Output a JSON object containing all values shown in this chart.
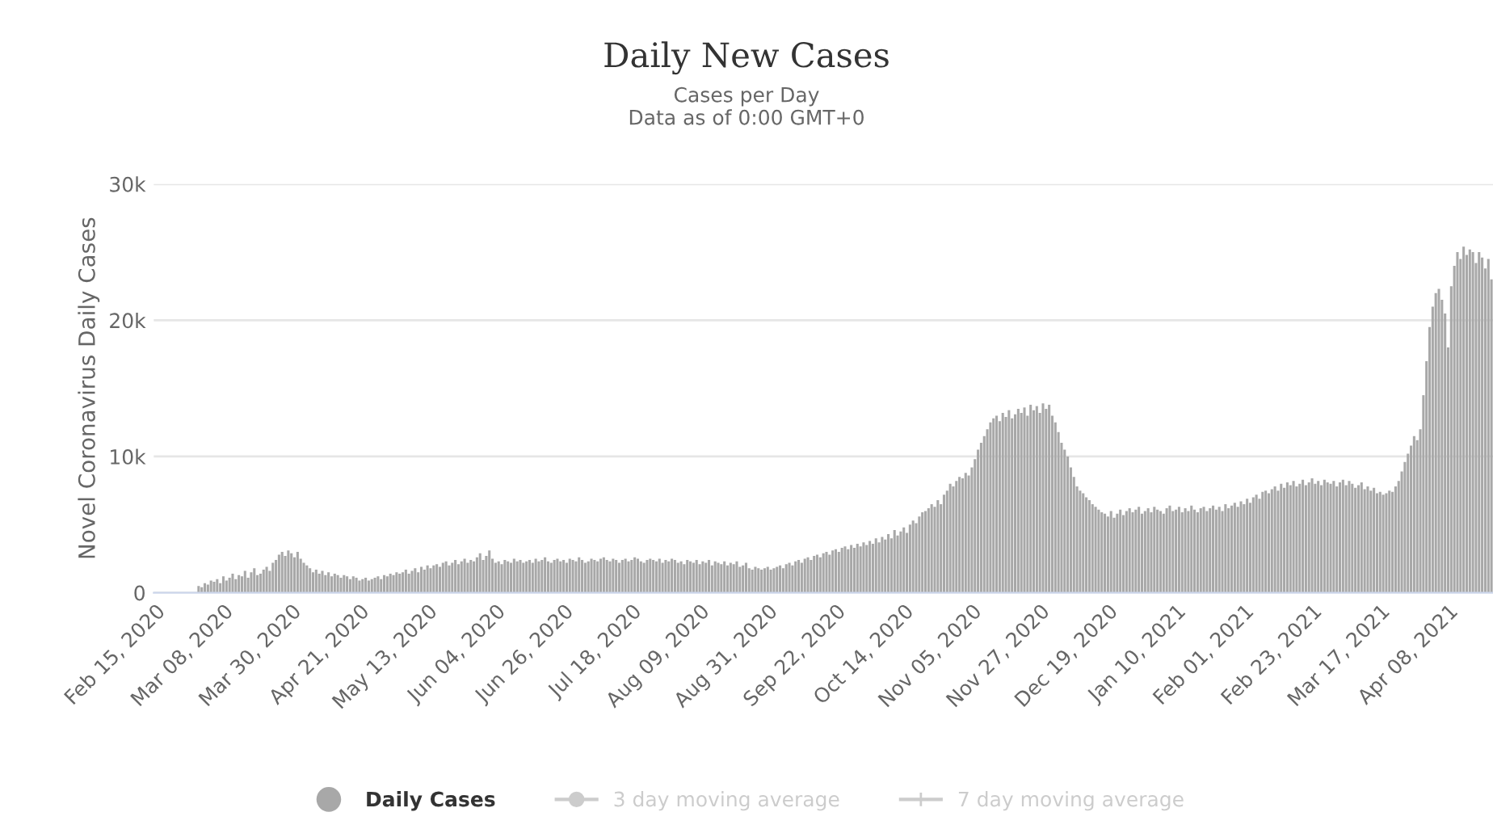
{
  "chart_data": {
    "type": "bar",
    "title": "Daily New Cases",
    "subtitle": "Cases per Day\nData as of 0:00 GMT+0",
    "ylabel": "Novel Coronavirus Daily Cases",
    "ylim": [
      0,
      30000
    ],
    "yticks": [
      0,
      {
        "value": 10000,
        "label": "10k"
      },
      {
        "value": 20000,
        "label": "20k"
      },
      {
        "value": 30000,
        "label": "30k"
      }
    ],
    "grid": "y",
    "legend": "bottom",
    "categories": [
      "Feb 15, 2020",
      null,
      null,
      null,
      null,
      null,
      null,
      null,
      null,
      null,
      null,
      null,
      null,
      null,
      null,
      null,
      null,
      null,
      null,
      null,
      null,
      null,
      "Mar 08, 2020",
      null,
      null,
      null,
      null,
      null,
      null,
      null,
      null,
      null,
      null,
      null,
      null,
      null,
      null,
      null,
      null,
      null,
      null,
      null,
      null,
      null,
      "Mar 30, 2020",
      null,
      null,
      null,
      null,
      null,
      null,
      null,
      null,
      null,
      null,
      null,
      null,
      null,
      null,
      null,
      null,
      null,
      null,
      null,
      null,
      null,
      "Apr 21, 2020",
      null,
      null,
      null,
      null,
      null,
      null,
      null,
      null,
      null,
      null,
      null,
      null,
      null,
      null,
      null,
      null,
      null,
      null,
      null,
      null,
      null,
      "May 13, 2020",
      null,
      null,
      null,
      null,
      null,
      null,
      null,
      null,
      null,
      null,
      null,
      null,
      null,
      null,
      null,
      null,
      null,
      null,
      null,
      null,
      null,
      "Jun 04, 2020",
      null,
      null,
      null,
      null,
      null,
      null,
      null,
      null,
      null,
      null,
      null,
      null,
      null,
      null,
      null,
      null,
      null,
      null,
      null,
      null,
      null,
      "Jun 26, 2020",
      null,
      null,
      null,
      null,
      null,
      null,
      null,
      null,
      null,
      null,
      null,
      null,
      null,
      null,
      null,
      null,
      null,
      null,
      null,
      null,
      null,
      "Jul 18, 2020",
      null,
      null,
      null,
      null,
      null,
      null,
      null,
      null,
      null,
      null,
      null,
      null,
      null,
      null,
      null,
      null,
      null,
      null,
      null,
      null,
      null,
      "Aug 09, 2020",
      null,
      null,
      null,
      null,
      null,
      null,
      null,
      null,
      null,
      null,
      null,
      null,
      null,
      null,
      null,
      null,
      null,
      null,
      null,
      null,
      null,
      "Aug 31, 2020",
      null,
      null,
      null,
      null,
      null,
      null,
      null,
      null,
      null,
      null,
      null,
      null,
      null,
      null,
      null,
      null,
      null,
      null,
      null,
      null,
      null,
      "Sep 22, 2020",
      null,
      null,
      null,
      null,
      null,
      null,
      null,
      null,
      null,
      null,
      null,
      null,
      null,
      null,
      null,
      null,
      null,
      null,
      null,
      null,
      null,
      "Oct 14, 2020",
      null,
      null,
      null,
      null,
      null,
      null,
      null,
      null,
      null,
      null,
      null,
      null,
      null,
      null,
      null,
      null,
      null,
      null,
      null,
      null,
      null,
      "Nov 05, 2020",
      null,
      null,
      null,
      null,
      null,
      null,
      null,
      null,
      null,
      null,
      null,
      null,
      null,
      null,
      null,
      null,
      null,
      null,
      null,
      null,
      null,
      "Nov 27, 2020",
      null,
      null,
      null,
      null,
      null,
      null,
      null,
      null,
      null,
      null,
      null,
      null,
      null,
      null,
      null,
      null,
      null,
      null,
      null,
      null,
      null,
      "Dec 19, 2020",
      null,
      null,
      null,
      null,
      null,
      null,
      null,
      null,
      null,
      null,
      null,
      null,
      null,
      null,
      null,
      null,
      null,
      null,
      null,
      null,
      null,
      "Jan 10, 2021",
      null,
      null,
      null,
      null,
      null,
      null,
      null,
      null,
      null,
      null,
      null,
      null,
      null,
      null,
      null,
      null,
      null,
      null,
      null,
      null,
      null,
      "Feb 01, 2021",
      null,
      null,
      null,
      null,
      null,
      null,
      null,
      null,
      null,
      null,
      null,
      null,
      null,
      null,
      null,
      null,
      null,
      null,
      null,
      null,
      null,
      "Feb 23, 2021",
      null,
      null,
      null,
      null,
      null,
      null,
      null,
      null,
      null,
      null,
      null,
      null,
      null,
      null,
      null,
      null,
      null,
      null,
      null,
      null,
      null,
      "Mar 17, 2021",
      null,
      null,
      null,
      null,
      null,
      null,
      null,
      null,
      null,
      null,
      null,
      null,
      null,
      null,
      null,
      null,
      null,
      null,
      null,
      null,
      null,
      "Apr 08, 2021",
      null,
      null,
      null,
      null,
      null,
      null,
      null,
      null,
      null,
      null,
      null,
      null,
      null,
      null
    ],
    "series": [
      {
        "name": "Daily Cases",
        "marker": "circle",
        "color": "#a8a8a8",
        "values": [
          0,
          0,
          0,
          0,
          0,
          0,
          0,
          0,
          0,
          0,
          0,
          0,
          0,
          0,
          500,
          400,
          700,
          600,
          900,
          800,
          1000,
          700,
          1200,
          900,
          1100,
          1400,
          1000,
          1300,
          1200,
          1600,
          1100,
          1500,
          1800,
          1300,
          1400,
          1700,
          1900,
          1600,
          2200,
          2400,
          2800,
          3000,
          2700,
          3100,
          2900,
          2600,
          3000,
          2500,
          2200,
          2000,
          1800,
          1500,
          1700,
          1400,
          1600,
          1300,
          1500,
          1200,
          1400,
          1300,
          1100,
          1300,
          1200,
          1000,
          1200,
          1100,
          900,
          1000,
          1100,
          900,
          1000,
          1100,
          1200,
          1000,
          1300,
          1200,
          1400,
          1300,
          1500,
          1400,
          1500,
          1700,
          1400,
          1600,
          1800,
          1500,
          1900,
          1700,
          2000,
          1800,
          2000,
          2100,
          1900,
          2200,
          2300,
          2000,
          2200,
          2400,
          2100,
          2300,
          2500,
          2200,
          2400,
          2300,
          2600,
          2900,
          2400,
          2700,
          3100,
          2500,
          2200,
          2300,
          2100,
          2400,
          2300,
          2200,
          2500,
          2300,
          2400,
          2200,
          2300,
          2400,
          2200,
          2500,
          2300,
          2400,
          2600,
          2300,
          2200,
          2400,
          2500,
          2300,
          2400,
          2200,
          2500,
          2400,
          2300,
          2600,
          2400,
          2200,
          2300,
          2500,
          2400,
          2300,
          2500,
          2600,
          2400,
          2300,
          2500,
          2400,
          2200,
          2400,
          2500,
          2300,
          2400,
          2600,
          2500,
          2300,
          2200,
          2400,
          2500,
          2400,
          2300,
          2500,
          2200,
          2400,
          2300,
          2500,
          2400,
          2200,
          2300,
          2100,
          2400,
          2300,
          2200,
          2400,
          2100,
          2300,
          2200,
          2400,
          2000,
          2300,
          2200,
          2100,
          2300,
          2000,
          2200,
          2100,
          2300,
          1900,
          2000,
          2200,
          1800,
          1700,
          1900,
          1800,
          1700,
          1800,
          1900,
          1700,
          1800,
          1900,
          2000,
          1800,
          2100,
          2200,
          2000,
          2300,
          2400,
          2200,
          2500,
          2600,
          2400,
          2700,
          2800,
          2600,
          2900,
          3000,
          2800,
          3100,
          3200,
          3000,
          3300,
          3400,
          3200,
          3500,
          3300,
          3600,
          3400,
          3700,
          3500,
          3800,
          3600,
          4000,
          3700,
          4100,
          3900,
          4300,
          4000,
          4600,
          4200,
          4500,
          4800,
          4400,
          5000,
          5300,
          5100,
          5600,
          5900,
          6000,
          6200,
          6500,
          6300,
          6800,
          6500,
          7200,
          7500,
          8000,
          7800,
          8200,
          8500,
          8400,
          8800,
          8600,
          9200,
          9800,
          10500,
          11000,
          11500,
          12000,
          12500,
          12800,
          13000,
          12600,
          13200,
          12900,
          13400,
          12800,
          13100,
          13500,
          13200,
          13600,
          13000,
          13800,
          13400,
          13700,
          13200,
          13900,
          13500,
          13800,
          13000,
          12500,
          11800,
          11000,
          10500,
          10000,
          9200,
          8500,
          7800,
          7500,
          7300,
          7000,
          6800,
          6500,
          6300,
          6100,
          5900,
          5800,
          5600,
          6000,
          5500,
          5800,
          6100,
          5700,
          6000,
          6200,
          5900,
          6100,
          6300,
          5800,
          6000,
          6200,
          5900,
          6300,
          6100,
          6000,
          5800,
          6200,
          6400,
          6000,
          6100,
          6300,
          5900,
          6200,
          6000,
          6400,
          6100,
          5900,
          6200,
          6300,
          6000,
          6200,
          6400,
          6100,
          6300,
          6000,
          6500,
          6200,
          6400,
          6600,
          6300,
          6700,
          6500,
          6900,
          6600,
          7000,
          7200,
          6900,
          7400,
          7500,
          7300,
          7600,
          7800,
          7500,
          8000,
          7700,
          8100,
          7900,
          8200,
          7800,
          8000,
          8300,
          7900,
          8100,
          8400,
          8000,
          8200,
          7900,
          8300,
          8100,
          8000,
          8200,
          7800,
          8100,
          8300,
          7900,
          8200,
          8000,
          7700,
          7900,
          8100,
          7600,
          7800,
          7500,
          7700,
          7300,
          7400,
          7200,
          7300,
          7500,
          7400,
          7800,
          8200,
          8900,
          9600,
          10200,
          10800,
          11500,
          11200,
          12000,
          14500,
          17000,
          19500,
          21000,
          22000,
          22300,
          21500,
          20500,
          18000,
          22500,
          24000,
          25000,
          24500,
          25400,
          24800,
          25200,
          25000,
          24200,
          25000,
          24600,
          23800,
          24500,
          23000
        ]
      },
      {
        "name": "3 day moving average",
        "type": "line",
        "marker": "circle",
        "color": "#cccccc",
        "values": [
          null,
          null,
          null,
          null,
          null,
          null,
          null,
          null,
          null,
          null,
          null,
          null,
          null,
          null,
          null,
          null,
          null,
          null,
          null,
          null,
          null,
          null,
          null,
          null,
          null,
          null,
          null,
          null,
          null,
          null,
          null,
          null,
          null,
          null,
          null,
          null,
          null,
          null,
          null,
          null,
          null,
          null,
          null,
          null,
          null,
          null,
          null,
          null,
          null,
          null,
          null,
          null,
          null,
          null,
          null,
          null,
          null,
          null,
          null,
          null,
          null,
          null,
          null,
          null,
          null,
          null,
          null,
          null,
          null,
          null,
          null,
          null,
          null,
          null,
          null,
          null,
          null,
          null,
          null,
          null,
          null,
          null,
          null,
          null,
          null,
          null,
          null,
          null,
          null,
          null,
          null,
          null,
          null,
          null,
          null,
          null,
          null,
          null,
          null,
          null,
          null,
          null,
          null,
          null,
          null,
          null,
          null,
          null,
          null,
          null,
          null,
          null,
          null,
          null,
          null,
          null,
          null,
          null,
          null,
          null,
          null,
          null,
          null,
          null,
          null,
          null,
          null,
          null,
          null,
          null,
          null,
          null,
          null,
          null,
          null,
          null,
          null,
          null,
          null,
          null,
          null,
          null,
          null,
          null,
          null,
          null,
          null,
          null,
          null,
          null,
          null,
          null,
          null,
          null,
          null,
          null,
          null,
          null,
          null,
          null,
          null,
          null,
          null,
          null,
          null,
          null,
          null,
          null,
          null,
          null,
          null,
          null,
          null,
          null,
          null,
          null,
          null,
          null,
          null,
          null,
          null,
          null,
          null,
          null,
          null,
          null,
          null,
          null,
          null,
          null,
          null,
          null,
          null,
          null,
          null,
          null,
          null,
          null,
          null,
          null,
          null,
          null,
          null,
          null,
          null,
          null,
          null,
          null,
          null,
          null,
          null,
          null,
          null,
          null,
          null,
          null,
          null,
          null,
          null,
          null,
          null,
          null,
          null,
          null,
          null,
          null,
          null,
          null,
          null,
          null,
          null,
          null,
          null,
          null,
          null,
          null,
          null,
          null,
          null,
          null,
          null,
          null,
          null,
          null,
          null,
          null,
          null,
          null,
          null,
          null,
          null,
          null,
          null,
          null,
          null,
          null,
          null,
          null,
          null,
          null,
          null,
          null,
          null,
          null,
          null,
          null,
          null,
          null,
          null,
          null,
          null,
          null,
          null,
          null,
          null,
          null,
          null,
          null,
          null,
          null,
          null,
          null,
          null,
          null,
          null,
          null,
          null,
          null,
          null,
          null,
          null,
          null,
          null,
          null,
          null,
          null,
          null,
          null,
          null,
          null,
          null,
          null,
          null,
          null,
          null,
          null,
          null,
          null,
          null,
          null,
          null,
          null,
          null,
          null,
          null,
          null,
          null,
          null,
          null,
          null,
          null,
          null,
          null,
          null,
          null,
          null,
          null,
          null,
          null,
          null,
          null,
          null,
          null,
          null,
          null,
          null,
          null,
          null,
          null,
          null,
          null,
          null,
          null,
          null,
          null,
          null,
          null,
          null,
          null,
          null,
          null,
          null,
          null,
          null,
          null,
          null,
          null,
          null,
          null,
          null,
          null,
          null,
          null,
          null,
          null,
          null,
          null,
          null,
          null,
          null,
          null,
          null,
          null,
          null,
          null,
          null,
          null,
          null,
          null,
          null,
          null,
          null,
          null,
          null,
          null,
          null,
          null,
          null,
          null,
          null,
          null,
          null,
          null,
          null,
          null,
          null,
          null,
          null,
          null,
          null,
          null,
          null,
          null,
          null,
          null,
          null,
          null,
          null,
          null,
          null,
          null,
          null,
          null,
          null,
          null,
          null,
          null,
          null,
          null,
          null,
          null,
          null,
          null,
          null,
          null,
          null,
          null,
          null,
          null,
          null,
          null,
          null,
          null
        ]
      },
      {
        "name": "7 day moving average",
        "type": "line",
        "marker": "cross",
        "color": "#cccccc",
        "values": [
          null,
          null,
          null,
          null,
          null,
          null,
          null,
          null,
          null,
          null,
          null,
          null,
          null,
          null,
          null,
          null,
          null,
          null,
          null,
          null,
          null,
          null,
          null,
          null,
          null,
          null,
          null,
          null,
          null,
          null,
          null,
          null,
          null,
          null,
          null,
          null,
          null,
          null,
          null,
          null,
          null,
          null,
          null,
          null,
          null,
          null,
          null,
          null,
          null,
          null,
          null,
          null,
          null,
          null,
          null,
          null,
          null,
          null,
          null,
          null,
          null,
          null,
          null,
          null,
          null,
          null,
          null,
          null,
          null,
          null,
          null,
          null,
          null,
          null,
          null,
          null,
          null,
          null,
          null,
          null,
          null,
          null,
          null,
          null,
          null,
          null,
          null,
          null,
          null,
          null,
          null,
          null,
          null,
          null,
          null,
          null,
          null,
          null,
          null,
          null,
          null,
          null,
          null,
          null,
          null,
          null,
          null,
          null,
          null,
          null,
          null,
          null,
          null,
          null,
          null,
          null,
          null,
          null,
          null,
          null,
          null,
          null,
          null,
          null,
          null,
          null,
          null,
          null,
          null,
          null,
          null,
          null,
          null,
          null,
          null,
          null,
          null,
          null,
          null,
          null,
          null,
          null,
          null,
          null,
          null,
          null,
          null,
          null,
          null,
          null,
          null,
          null,
          null,
          null,
          null,
          null,
          null,
          null,
          null,
          null,
          null,
          null,
          null,
          null,
          null,
          null,
          null,
          null,
          null,
          null,
          null,
          null,
          null,
          null,
          null,
          null,
          null,
          null,
          null,
          null,
          null,
          null,
          null,
          null,
          null,
          null,
          null,
          null,
          null,
          null,
          null,
          null,
          null,
          null,
          null,
          null,
          null,
          null,
          null,
          null,
          null,
          null,
          null,
          null,
          null,
          null,
          null,
          null,
          null,
          null,
          null,
          null,
          null,
          null,
          null,
          null,
          null,
          null,
          null,
          null,
          null,
          null,
          null,
          null,
          null,
          null,
          null,
          null,
          null,
          null,
          null,
          null,
          null,
          null,
          null,
          null,
          null,
          null,
          null,
          null,
          null,
          null,
          null,
          null,
          null,
          null,
          null,
          null,
          null,
          null,
          null,
          null,
          null,
          null,
          null,
          null,
          null,
          null,
          null,
          null,
          null,
          null,
          null,
          null,
          null,
          null,
          null,
          null,
          null,
          null,
          null,
          null,
          null,
          null,
          null,
          null,
          null,
          null,
          null,
          null,
          null,
          null,
          null,
          null,
          null,
          null,
          null,
          null,
          null,
          null,
          null,
          null,
          null,
          null,
          null,
          null,
          null,
          null,
          null,
          null,
          null,
          null,
          null,
          null,
          null,
          null,
          null,
          null,
          null,
          null,
          null,
          null,
          null,
          null,
          null,
          null,
          null,
          null,
          null,
          null,
          null,
          null,
          null,
          null,
          null,
          null,
          null,
          null,
          null,
          null,
          null,
          null,
          null,
          null,
          null,
          null,
          null,
          null,
          null,
          null,
          null,
          null,
          null,
          null,
          null,
          null,
          null,
          null,
          null,
          null,
          null,
          null,
          null,
          null,
          null,
          null,
          null,
          null,
          null,
          null,
          null,
          null,
          null,
          null,
          null,
          null,
          null,
          null,
          null,
          null,
          null,
          null,
          null,
          null,
          null,
          null,
          null,
          null,
          null,
          null,
          null,
          null,
          null,
          null,
          null,
          null,
          null,
          null,
          null,
          null,
          null,
          null,
          null,
          null,
          null,
          null,
          null,
          null,
          null,
          null,
          null,
          null,
          null,
          null,
          null,
          null,
          null,
          null,
          null,
          null,
          null,
          null,
          null,
          null,
          null,
          null,
          null,
          null,
          null,
          null,
          null,
          null,
          null,
          null,
          null,
          null,
          null,
          null,
          null,
          null,
          null,
          null,
          null
        ]
      }
    ]
  }
}
